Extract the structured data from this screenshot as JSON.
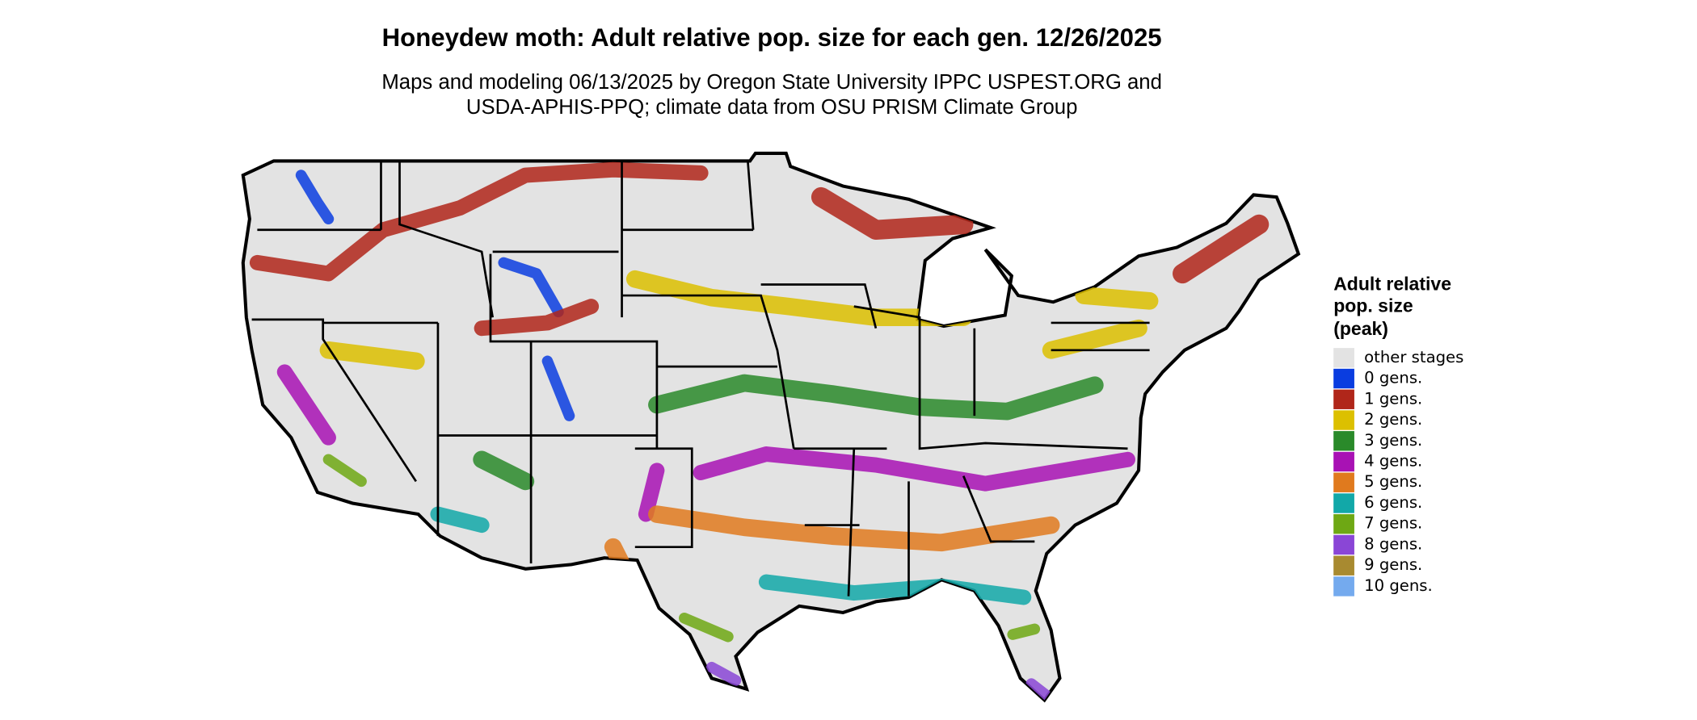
{
  "header": {
    "title": "Honeydew moth: Adult relative pop. size for each gen. 12/26/2025",
    "subtitle": [
      "Maps and modeling 06/13/2025 by Oregon State University IPPC USPEST.ORG and",
      "USDA-APHIS-PPQ; climate data from OSU PRISM Climate Group"
    ]
  },
  "legend": {
    "title": [
      "Adult relative",
      "pop. size",
      "(peak)"
    ],
    "items": [
      {
        "label": "other stages",
        "color": "#e3e3e3"
      },
      {
        "label": "0 gens.",
        "color": "#0a3de0"
      },
      {
        "label": "1 gens.",
        "color": "#b0261a"
      },
      {
        "label": "2 gens.",
        "color": "#dcc000"
      },
      {
        "label": "3 gens.",
        "color": "#2a8a2a"
      },
      {
        "label": "4 gens.",
        "color": "#a812b4"
      },
      {
        "label": "5 gens.",
        "color": "#e07a1e"
      },
      {
        "label": "6 gens.",
        "color": "#12a8a8"
      },
      {
        "label": "7 gens.",
        "color": "#6ea814"
      },
      {
        "label": "8 gens.",
        "color": "#8a46d6"
      },
      {
        "label": "9 gens.",
        "color": "#a88a30"
      },
      {
        "label": "10 gens.",
        "color": "#74aaee"
      }
    ]
  }
}
